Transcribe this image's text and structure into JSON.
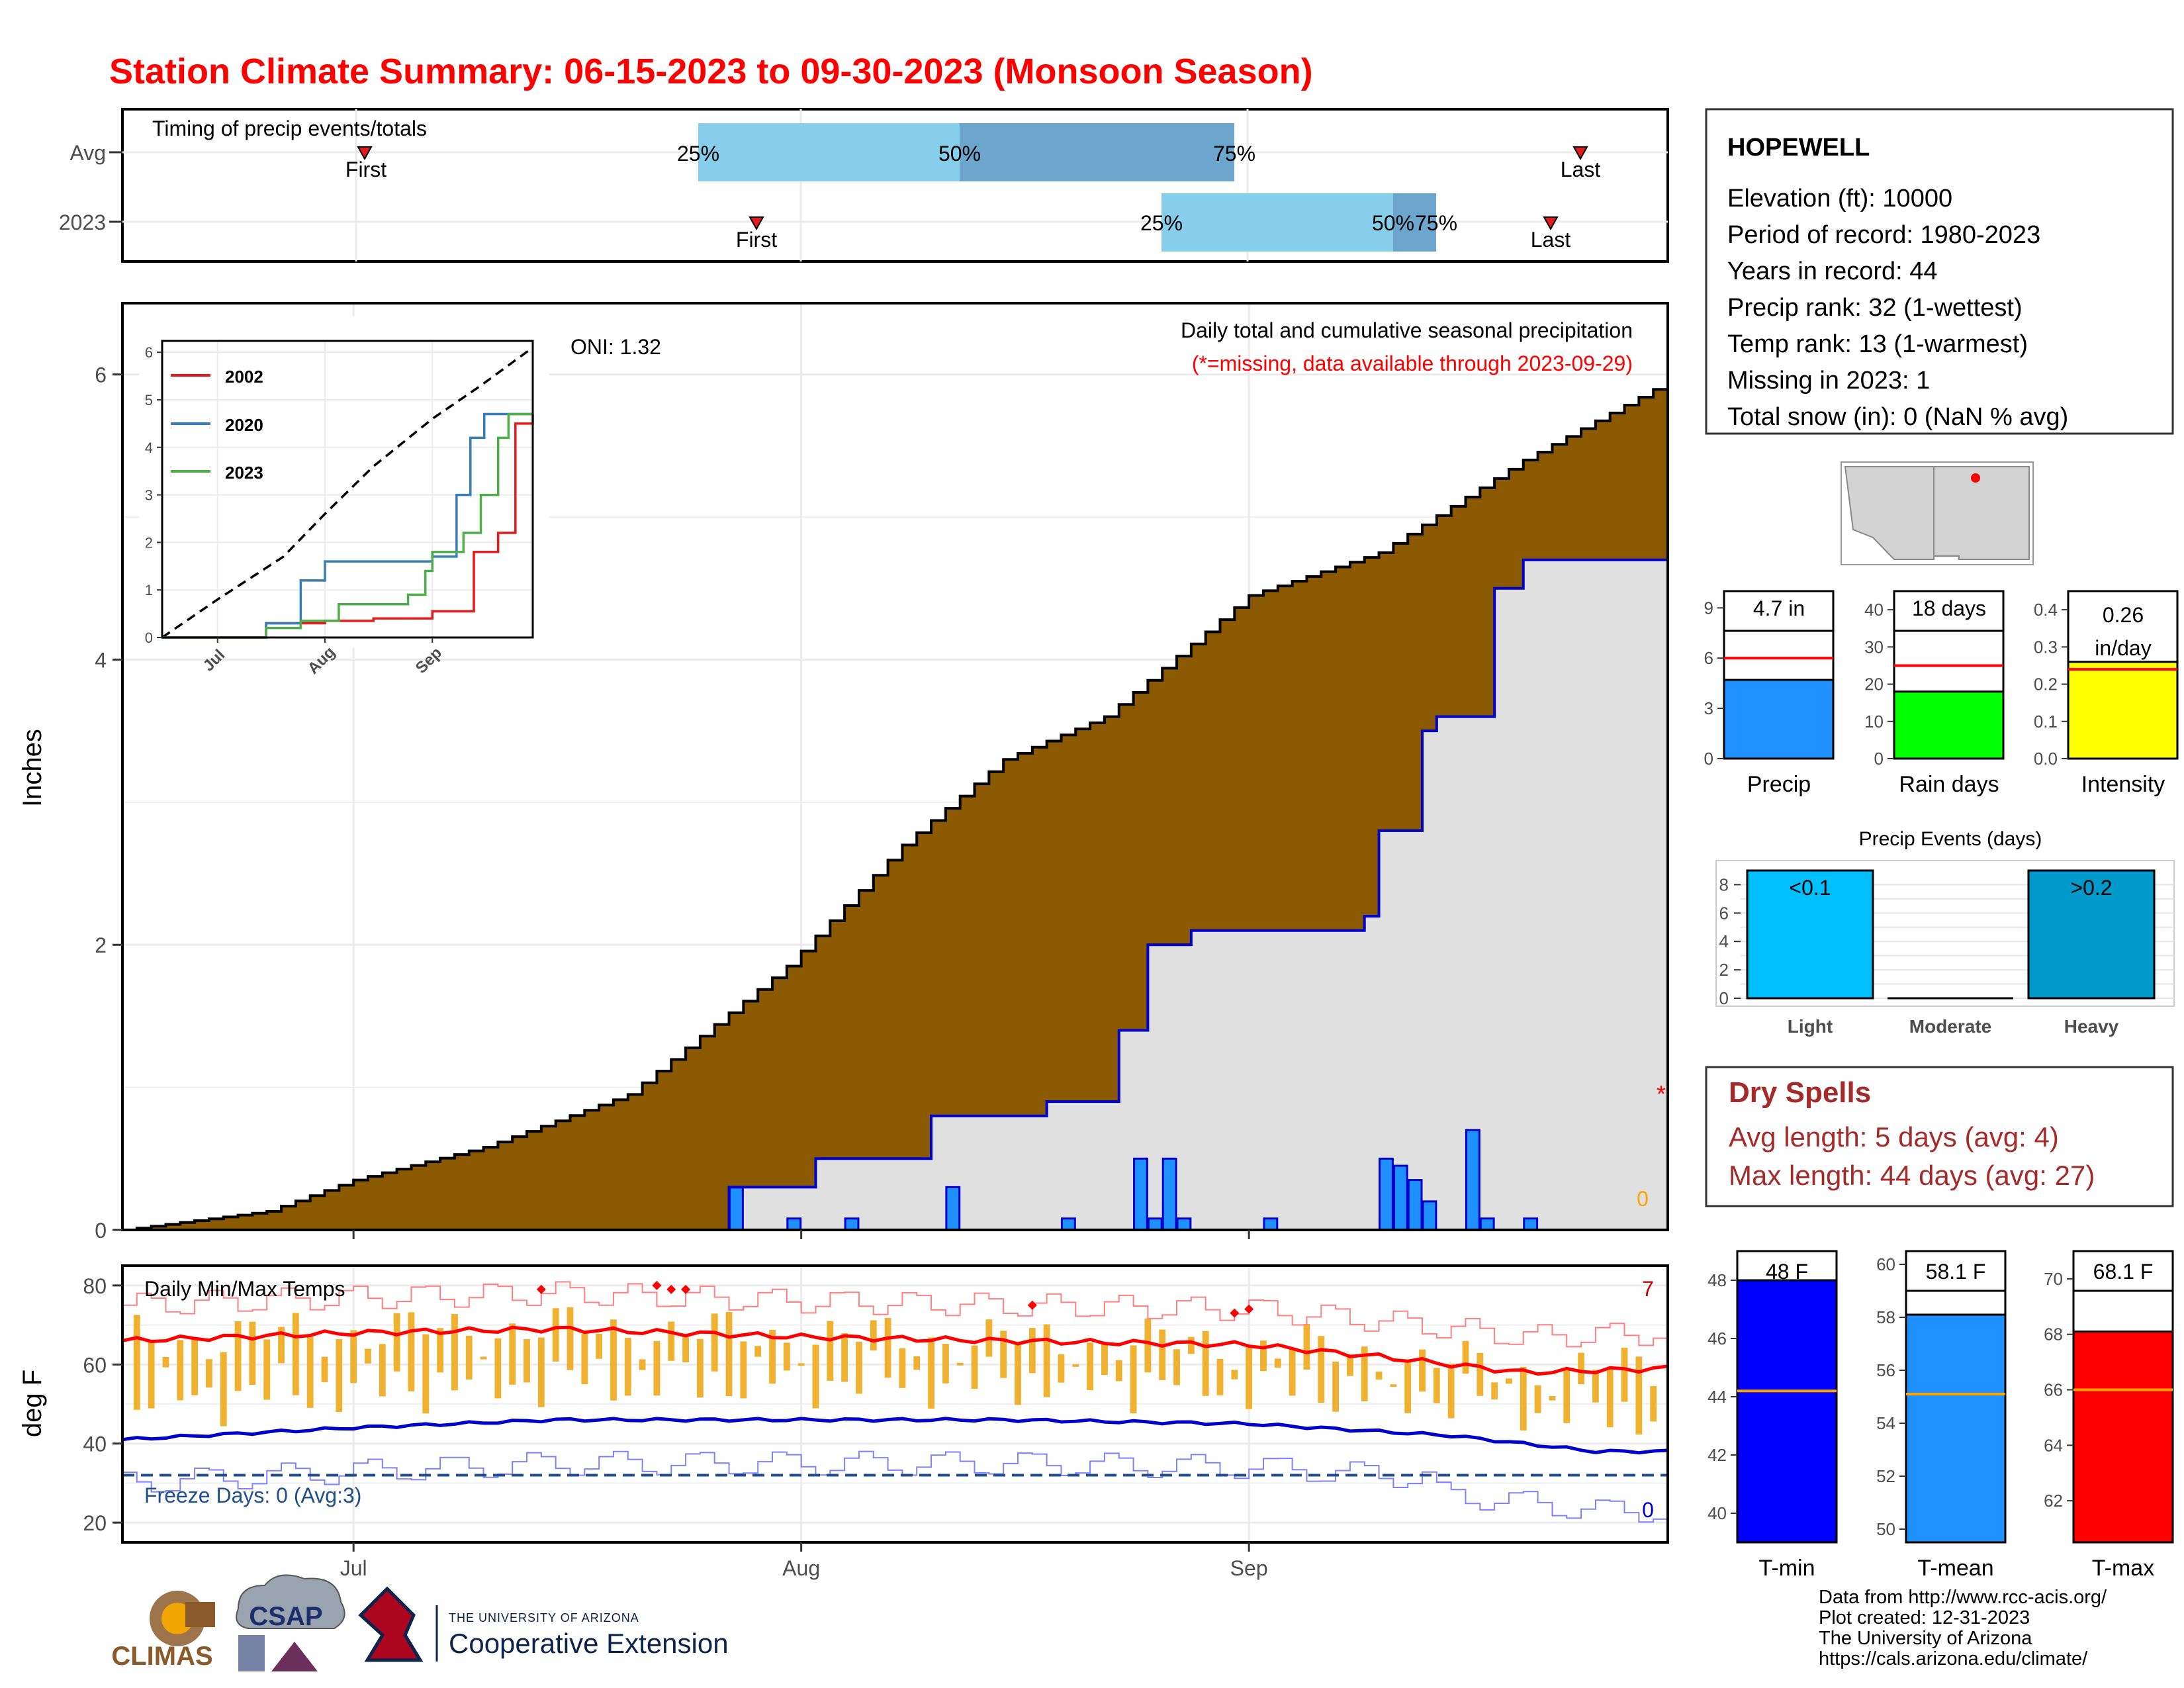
{
  "title": "Station Climate Summary: 06-15-2023 to 09-30-2023 (Monsoon Season)",
  "timing": {
    "label": "Timing of precip events/totals",
    "rows": [
      "Avg",
      "2023"
    ],
    "first_label": "First",
    "last_label": "Last",
    "p25": "25%",
    "p50": "50%",
    "p75": "75%"
  },
  "station": {
    "name": "HOPEWELL",
    "lines": [
      "Elevation (ft): 10000",
      "Period of record: 1980-2023",
      "Years in record: 44",
      "Precip rank: 32 (1-wettest)",
      "Temp rank: 13 (1-warmest)",
      "Missing in 2023: 1",
      "Total snow (in): 0 (NaN % avg)"
    ]
  },
  "main_panel": {
    "ylabel": "Inches",
    "oni": "ONI: 1.32",
    "subtitle": "Daily total and cumulative seasonal precipitation",
    "missing_note": "(*=missing, data available through 2023-09-29)",
    "missing_marker": "*",
    "zero_label": "0",
    "y_ticks": [
      "0",
      "2",
      "4",
      "6"
    ],
    "x_ticks": [
      "Jul",
      "Aug",
      "Sep"
    ]
  },
  "inset": {
    "legend": [
      "2002",
      "2020",
      "2023"
    ],
    "y_ticks": [
      "0",
      "1",
      "2",
      "3",
      "4",
      "5",
      "6"
    ],
    "x_ticks": [
      "Jul",
      "Aug",
      "Sep"
    ]
  },
  "mini_bars": [
    {
      "label": "Precip",
      "value_text": "4.7 in",
      "ticks": [
        "0",
        "3",
        "6",
        "9"
      ]
    },
    {
      "label": "Rain days",
      "value_text": "18 days",
      "ticks": [
        "0",
        "10",
        "20",
        "30",
        "40"
      ]
    },
    {
      "label": "Intensity",
      "value_text1": "0.26",
      "value_text2": "in/day",
      "ticks": [
        "0.0",
        "0.1",
        "0.2",
        "0.3",
        "0.4"
      ]
    }
  ],
  "events": {
    "title": "Precip Events (days)",
    "categories": [
      "Light",
      "Moderate",
      "Heavy"
    ],
    "bar_labels": [
      "<0.1",
      "",
      ">0.2"
    ],
    "ticks": [
      "0",
      "2",
      "4",
      "6",
      "8"
    ]
  },
  "dry_spells": {
    "title": "Dry Spells",
    "avg": "Avg length: 5 days (avg: 4)",
    "max": "Max length: 44 days (avg: 27)"
  },
  "temp_panel": {
    "ylabel": "deg F",
    "title": "Daily Min/Max Temps",
    "freeze": "Freeze Days: 0 (Avg:3)",
    "count_hot": "7",
    "count_cold": "0",
    "y_ticks": [
      "20",
      "40",
      "60",
      "80"
    ]
  },
  "temp_bars": [
    {
      "label": "T-min",
      "value_text": "48 F",
      "ticks": [
        "40",
        "42",
        "44",
        "46",
        "48"
      ]
    },
    {
      "label": "T-mean",
      "value_text": "58.1 F",
      "ticks": [
        "50",
        "52",
        "54",
        "56",
        "58",
        "60"
      ]
    },
    {
      "label": "T-max",
      "value_text": "68.1 F",
      "ticks": [
        "62",
        "64",
        "66",
        "68",
        "70"
      ]
    }
  ],
  "footer": {
    "credits": [
      "Data from http://www.rcc-acis.org/",
      "Plot created: 12-31-2023",
      "The University of Arizona",
      "https://cals.arizona.edu/climate/"
    ],
    "logo_climas": "CLIMAS",
    "logo_csap": "CSAP",
    "logo_ua_small": "THE UNIVERSITY OF ARIZONA",
    "logo_ua_big": "Cooperative Extension"
  },
  "colors": {
    "title": "#ff0000",
    "avg_fill": "#8b5a00",
    "obs_line": "#0000cc",
    "daily_bar": "#1e90ff",
    "dry_spells": "#a52a2a"
  },
  "chart_data": [
    {
      "type": "area",
      "title": "Daily total and cumulative seasonal precipitation",
      "ylabel": "Inches",
      "x_range": [
        "2023-06-15",
        "2023-09-30"
      ],
      "ylim": [
        0,
        6.5
      ],
      "series": [
        {
          "name": "",
          "points": [
            [
              "2023-06-15",
              0.0
            ],
            [
              "2023-06-25",
              0.13
            ],
            [
              "2023-07-01",
              0.35
            ],
            [
              "2023-07-10",
              0.58
            ],
            [
              "2023-07-20",
              0.95
            ],
            [
              "2023-07-31",
              1.85
            ],
            [
              "2023-08-08",
              2.7
            ],
            [
              "2023-08-15",
              3.3
            ],
            [
              "2023-08-22",
              3.6
            ],
            [
              "2023-09-01",
              4.45
            ],
            [
              "2023-09-10",
              4.75
            ],
            [
              "2023-09-20",
              5.4
            ],
            [
              "2023-09-30",
              5.95
            ]
          ]
        },
        {
          "name": "",
          "points": [
            [
              "2023-07-27",
              0.3
            ],
            [
              "2023-08-02",
              0.5
            ],
            [
              "2023-08-10",
              0.8
            ],
            [
              "2023-08-18",
              0.9
            ],
            [
              "2023-08-23",
              1.4
            ],
            [
              "2023-08-25",
              2.0
            ],
            [
              "2023-08-28",
              2.1
            ],
            [
              "2023-09-09",
              2.2
            ],
            [
              "2023-09-10",
              2.8
            ],
            [
              "2023-09-13",
              3.5
            ],
            [
              "2023-09-14",
              3.6
            ],
            [
              "2023-09-18",
              4.5
            ],
            [
              "2023-09-20",
              4.7
            ],
            [
              "2023-09-29",
              4.7
            ]
          ]
        }
      ],
      "daily_bars": [
        [
          "2023-07-27",
          0.3
        ],
        [
          "2023-07-31",
          0.08
        ],
        [
          "2023-08-04",
          0.08
        ],
        [
          "2023-08-11",
          0.3
        ],
        [
          "2023-08-19",
          0.08
        ],
        [
          "2023-08-24",
          0.5
        ],
        [
          "2023-08-25",
          0.08
        ],
        [
          "2023-08-26",
          0.5
        ],
        [
          "2023-08-27",
          0.08
        ],
        [
          "2023-09-02",
          0.08
        ],
        [
          "2023-09-10",
          0.5
        ],
        [
          "2023-09-11",
          0.45
        ],
        [
          "2023-09-12",
          0.35
        ],
        [
          "2023-09-13",
          0.2
        ],
        [
          "2023-09-16",
          0.7
        ],
        [
          "2023-09-17",
          0.08
        ],
        [
          "2023-09-20",
          0.08
        ]
      ]
    },
    {
      "type": "line",
      "title": "",
      "x_range": [
        "2023-06-15",
        "2023-09-30"
      ],
      "ylim": [
        0,
        6
      ],
      "series": [
        {
          "name": "",
          "points": [
            [
              "2023-06-15",
              0
            ],
            [
              "2023-07-01",
              0.8
            ],
            [
              "2023-07-20",
              1.7
            ],
            [
              "2023-08-01",
              2.6
            ],
            [
              "2023-08-15",
              3.6
            ],
            [
              "2023-09-01",
              4.6
            ],
            [
              "2023-09-15",
              5.3
            ],
            [
              "2023-09-30",
              6.1
            ]
          ]
        },
        {
          "name": "2002",
          "points": [
            [
              "2023-06-15",
              0
            ],
            [
              "2023-07-15",
              0.3
            ],
            [
              "2023-08-01",
              0.35
            ],
            [
              "2023-08-15",
              0.4
            ],
            [
              "2023-09-01",
              0.55
            ],
            [
              "2023-09-13",
              1.8
            ],
            [
              "2023-09-20",
              2.2
            ],
            [
              "2023-09-25",
              4.5
            ],
            [
              "2023-09-30",
              4.7
            ]
          ]
        },
        {
          "name": "2020",
          "points": [
            [
              "2023-06-15",
              0
            ],
            [
              "2023-07-15",
              0.3
            ],
            [
              "2023-07-25",
              1.2
            ],
            [
              "2023-08-01",
              1.6
            ],
            [
              "2023-08-15",
              1.6
            ],
            [
              "2023-09-01",
              1.7
            ],
            [
              "2023-09-08",
              3.0
            ],
            [
              "2023-09-12",
              4.2
            ],
            [
              "2023-09-16",
              4.7
            ],
            [
              "2023-09-30",
              4.7
            ]
          ]
        },
        {
          "name": "2023",
          "points": [
            [
              "2023-06-15",
              0
            ],
            [
              "2023-07-15",
              0.2
            ],
            [
              "2023-07-25",
              0.35
            ],
            [
              "2023-08-05",
              0.7
            ],
            [
              "2023-08-25",
              0.9
            ],
            [
              "2023-08-30",
              1.4
            ],
            [
              "2023-09-01",
              1.8
            ],
            [
              "2023-09-10",
              2.2
            ],
            [
              "2023-09-15",
              3.0
            ],
            [
              "2023-09-20",
              4.2
            ],
            [
              "2023-09-23",
              4.7
            ],
            [
              "2023-09-30",
              4.7
            ]
          ]
        }
      ]
    },
    {
      "type": "bar",
      "title": "",
      "categories": [
        "Precip",
        "Rain days",
        "Intensity"
      ],
      "values": [
        4.7,
        18,
        0.26
      ],
      "averages": [
        6.0,
        25,
        0.24
      ],
      "ylims": [
        [
          0,
          10
        ],
        [
          0,
          45
        ],
        [
          0,
          0.45
        ]
      ]
    },
    {
      "type": "bar",
      "title": "Precip Events (days)",
      "categories": [
        "Light",
        "Moderate",
        "Heavy"
      ],
      "values": [
        9,
        0,
        9
      ],
      "ylim": [
        0,
        9
      ]
    },
    {
      "type": "line",
      "title": "Daily Min/Max Temps",
      "ylabel": "deg F",
      "x_range": [
        "2023-06-15",
        "2023-09-30"
      ],
      "ylim": [
        15,
        85
      ],
      "freeze_line": 32,
      "series": [
        {
          "name": "",
          "points": [
            [
              "2023-06-15",
              66
            ],
            [
              "2023-07-01",
              68
            ],
            [
              "2023-07-15",
              69
            ],
            [
              "2023-08-01",
              67
            ],
            [
              "2023-08-15",
              66
            ],
            [
              "2023-09-01",
              65
            ],
            [
              "2023-09-10",
              62
            ],
            [
              "2023-09-20",
              58
            ],
            [
              "2023-09-30",
              59
            ]
          ]
        },
        {
          "name": "",
          "points": [
            [
              "2023-06-15",
              41
            ],
            [
              "2023-07-01",
              44
            ],
            [
              "2023-07-15",
              46
            ],
            [
              "2023-08-01",
              46
            ],
            [
              "2023-08-15",
              46
            ],
            [
              "2023-09-01",
              45
            ],
            [
              "2023-09-15",
              42
            ],
            [
              "2023-09-25",
              38
            ],
            [
              "2023-09-30",
              38
            ]
          ]
        }
      ],
      "record_highs": [
        [
          "2023-07-14",
          79
        ],
        [
          "2023-07-22",
          80
        ],
        [
          "2023-07-23",
          79
        ],
        [
          "2023-07-24",
          79
        ],
        [
          "2023-08-17",
          75
        ],
        [
          "2023-08-31",
          73
        ],
        [
          "2023-09-01",
          74
        ]
      ]
    },
    {
      "type": "bar",
      "title": "",
      "categories": [
        "T-min",
        "T-mean",
        "T-max"
      ],
      "values": [
        48,
        58.1,
        68.1
      ],
      "averages": [
        44.2,
        55.1,
        66.0
      ],
      "ylims": [
        [
          39,
          49
        ],
        [
          49.5,
          60.5
        ],
        [
          60.5,
          71
        ]
      ]
    }
  ]
}
